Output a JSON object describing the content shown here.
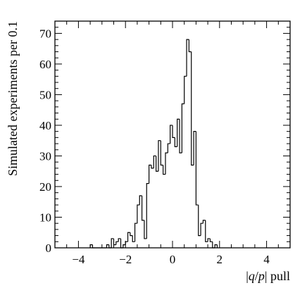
{
  "chart_data": {
    "type": "histogram",
    "xlabel_prefix": "|",
    "xlabel_var": "q",
    "xlabel_slash": "/",
    "xlabel_var2": "p",
    "xlabel_suffix": "| pull",
    "ylabel": "Simulated experiments per 0.1",
    "xlim": [
      -5.0,
      5.0
    ],
    "ylim": [
      0,
      74
    ],
    "grid": false,
    "bin_width": 0.1,
    "x_ticks": [
      -4,
      -2,
      0,
      2,
      4
    ],
    "x_tick_labels": [
      "−4",
      "−2",
      "0",
      "2",
      "4"
    ],
    "y_ticks": [
      0,
      10,
      20,
      30,
      40,
      50,
      60,
      70
    ],
    "y_tick_labels": [
      "0",
      "10",
      "20",
      "30",
      "40",
      "50",
      "60",
      "70"
    ],
    "bin_edges_start": -3.5,
    "counts": [
      1,
      0,
      0,
      0,
      0,
      0,
      0,
      1,
      0,
      3,
      1,
      2,
      3,
      0,
      1,
      2,
      5,
      4,
      2,
      8,
      14,
      17,
      9,
      3,
      21,
      27,
      26,
      30,
      25,
      35,
      27,
      24,
      31,
      34,
      40,
      36,
      33,
      42,
      31,
      47,
      56,
      68,
      64,
      27,
      38,
      14,
      4,
      8,
      9,
      2,
      3,
      2,
      0,
      1
    ]
  }
}
